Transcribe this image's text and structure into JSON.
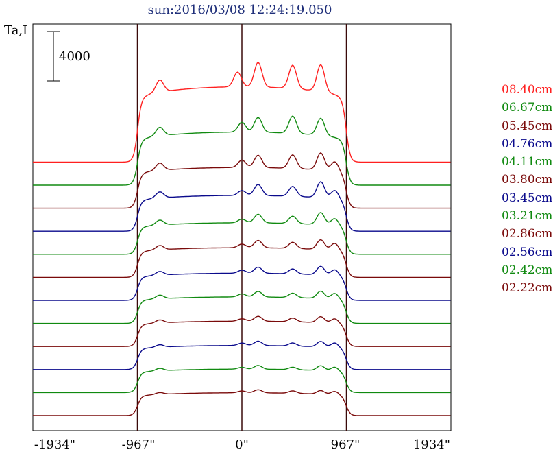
{
  "title": "sun:2016/03/08 12:24:19.050",
  "ylabel": "Ta,I",
  "scale_label": "4000",
  "xticks": [
    "-1934\"",
    "-967\"",
    "0\"",
    "967\"",
    "1934\""
  ],
  "colors": {
    "red": "#ff2020",
    "green": "#108a10",
    "darkred": "#7a0a0a",
    "blue": "#0a0a8c"
  },
  "chart_data": {
    "type": "line",
    "title": "sun:2016/03/08 12:24:19.050",
    "xlabel": "",
    "ylabel": "Ta,I",
    "xlim": [
      -1934,
      1934
    ],
    "x_ticks": [
      -1934,
      -967,
      0,
      967,
      1934
    ],
    "vertical_lines": [
      -967,
      0,
      967
    ],
    "scale_bar": 4000,
    "grid": false,
    "legend_position": "right",
    "series": [
      {
        "name": "08.40cm",
        "color": "#ff2020",
        "baseline": 1.0,
        "disk": 7.1,
        "peaks": [
          [
            -760,
            1.0
          ],
          [
            -40,
            1.2
          ],
          [
            150,
            2.0
          ],
          [
            470,
            1.9
          ],
          [
            730,
            2.2
          ]
        ]
      },
      {
        "name": "06.67cm",
        "color": "#108a10",
        "baseline": 0.6,
        "disk": 4.9,
        "peaks": [
          [
            -760,
            0.7
          ],
          [
            0,
            0.8
          ],
          [
            150,
            1.2
          ],
          [
            470,
            1.4
          ],
          [
            730,
            1.4
          ]
        ]
      },
      {
        "name": "05.45cm",
        "color": "#7a0a0a",
        "baseline": 0.5,
        "disk": 3.8,
        "peaks": [
          [
            -760,
            0.6
          ],
          [
            0,
            0.6
          ],
          [
            150,
            1.0
          ],
          [
            470,
            1.1
          ],
          [
            730,
            1.4
          ],
          [
            860,
            0.8
          ]
        ]
      },
      {
        "name": "04.76cm",
        "color": "#0a0a8c",
        "baseline": 0.4,
        "disk": 3.3,
        "peaks": [
          [
            -760,
            0.5
          ],
          [
            0,
            0.4
          ],
          [
            150,
            0.9
          ],
          [
            470,
            0.8
          ],
          [
            730,
            1.3
          ],
          [
            860,
            0.7
          ]
        ]
      },
      {
        "name": "04.11cm",
        "color": "#108a10",
        "baseline": 0.35,
        "disk": 2.9,
        "peaks": [
          [
            -760,
            0.4
          ],
          [
            0,
            0.3
          ],
          [
            150,
            0.7
          ],
          [
            470,
            0.6
          ],
          [
            730,
            1.0
          ],
          [
            860,
            0.6
          ]
        ]
      },
      {
        "name": "03.80cm",
        "color": "#7a0a0a",
        "baseline": 0.3,
        "disk": 2.7,
        "peaks": [
          [
            -760,
            0.35
          ],
          [
            0,
            0.3
          ],
          [
            150,
            0.6
          ],
          [
            470,
            0.5
          ],
          [
            730,
            0.8
          ],
          [
            860,
            0.6
          ]
        ]
      },
      {
        "name": "03.45cm",
        "color": "#0a0a8c",
        "baseline": 0.3,
        "disk": 2.5,
        "peaks": [
          [
            -760,
            0.3
          ],
          [
            0,
            0.25
          ],
          [
            150,
            0.5
          ],
          [
            470,
            0.4
          ],
          [
            730,
            0.7
          ],
          [
            860,
            0.5
          ]
        ]
      },
      {
        "name": "03.21cm",
        "color": "#108a10",
        "baseline": 0.25,
        "disk": 2.4,
        "peaks": [
          [
            -760,
            0.3
          ],
          [
            0,
            0.25
          ],
          [
            150,
            0.45
          ],
          [
            470,
            0.35
          ],
          [
            730,
            0.6
          ],
          [
            860,
            0.5
          ]
        ]
      },
      {
        "name": "02.86cm",
        "color": "#7a0a0a",
        "baseline": 0.25,
        "disk": 2.3,
        "peaks": [
          [
            -760,
            0.25
          ],
          [
            0,
            0.2
          ],
          [
            150,
            0.4
          ],
          [
            470,
            0.3
          ],
          [
            730,
            0.5
          ],
          [
            860,
            0.4
          ]
        ]
      },
      {
        "name": "02.56cm",
        "color": "#0a0a8c",
        "baseline": 0.25,
        "disk": 2.2,
        "peaks": [
          [
            -760,
            0.2
          ],
          [
            0,
            0.2
          ],
          [
            150,
            0.35
          ],
          [
            470,
            0.25
          ],
          [
            730,
            0.45
          ],
          [
            860,
            0.4
          ]
        ]
      },
      {
        "name": "02.42cm",
        "color": "#108a10",
        "baseline": 0.25,
        "disk": 2.15,
        "peaks": [
          [
            -760,
            0.2
          ],
          [
            0,
            0.15
          ],
          [
            150,
            0.3
          ],
          [
            470,
            0.2
          ],
          [
            730,
            0.4
          ],
          [
            860,
            0.35
          ]
        ]
      },
      {
        "name": "02.22cm",
        "color": "#7a0a0a",
        "baseline": 0.25,
        "disk": 2.1,
        "peaks": [
          [
            -760,
            0.15
          ],
          [
            0,
            0.15
          ],
          [
            150,
            0.25
          ],
          [
            470,
            0.2
          ],
          [
            730,
            0.3
          ],
          [
            860,
            0.3
          ]
        ]
      }
    ]
  }
}
